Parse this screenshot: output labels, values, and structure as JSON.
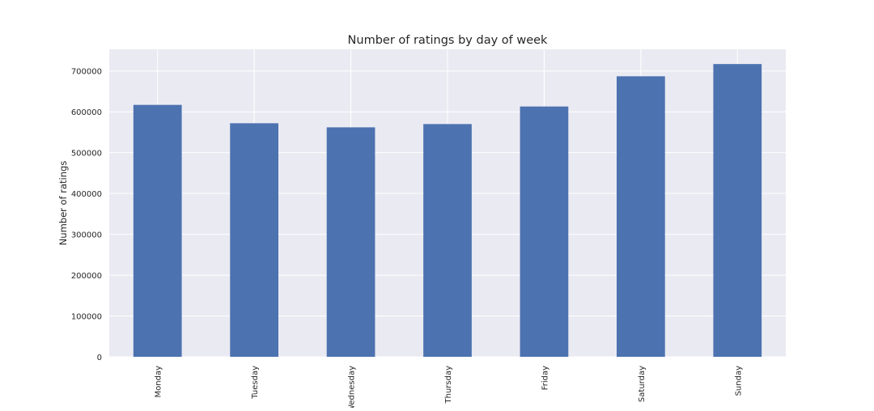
{
  "chart_data": {
    "type": "bar",
    "title": "Number of ratings by day of week",
    "xlabel": "",
    "ylabel": "Number of ratings",
    "categories": [
      "Monday",
      "Tuesday",
      "Wednesday",
      "Thursday",
      "Friday",
      "Saturday",
      "Sunday"
    ],
    "values": [
      617000,
      572000,
      562000,
      570000,
      613000,
      687000,
      717000
    ],
    "ylim": [
      0,
      753000
    ],
    "yticks": [
      0,
      100000,
      200000,
      300000,
      400000,
      500000,
      600000,
      700000
    ],
    "ytick_labels": [
      "0",
      "100000",
      "200000",
      "300000",
      "400000",
      "500000",
      "600000",
      "700000"
    ],
    "grid": true,
    "legend": "none",
    "colors": {
      "bar": "#4c72b0",
      "plot_background": "#eaeaf2",
      "grid": "#ffffff",
      "text": "#262626"
    }
  }
}
